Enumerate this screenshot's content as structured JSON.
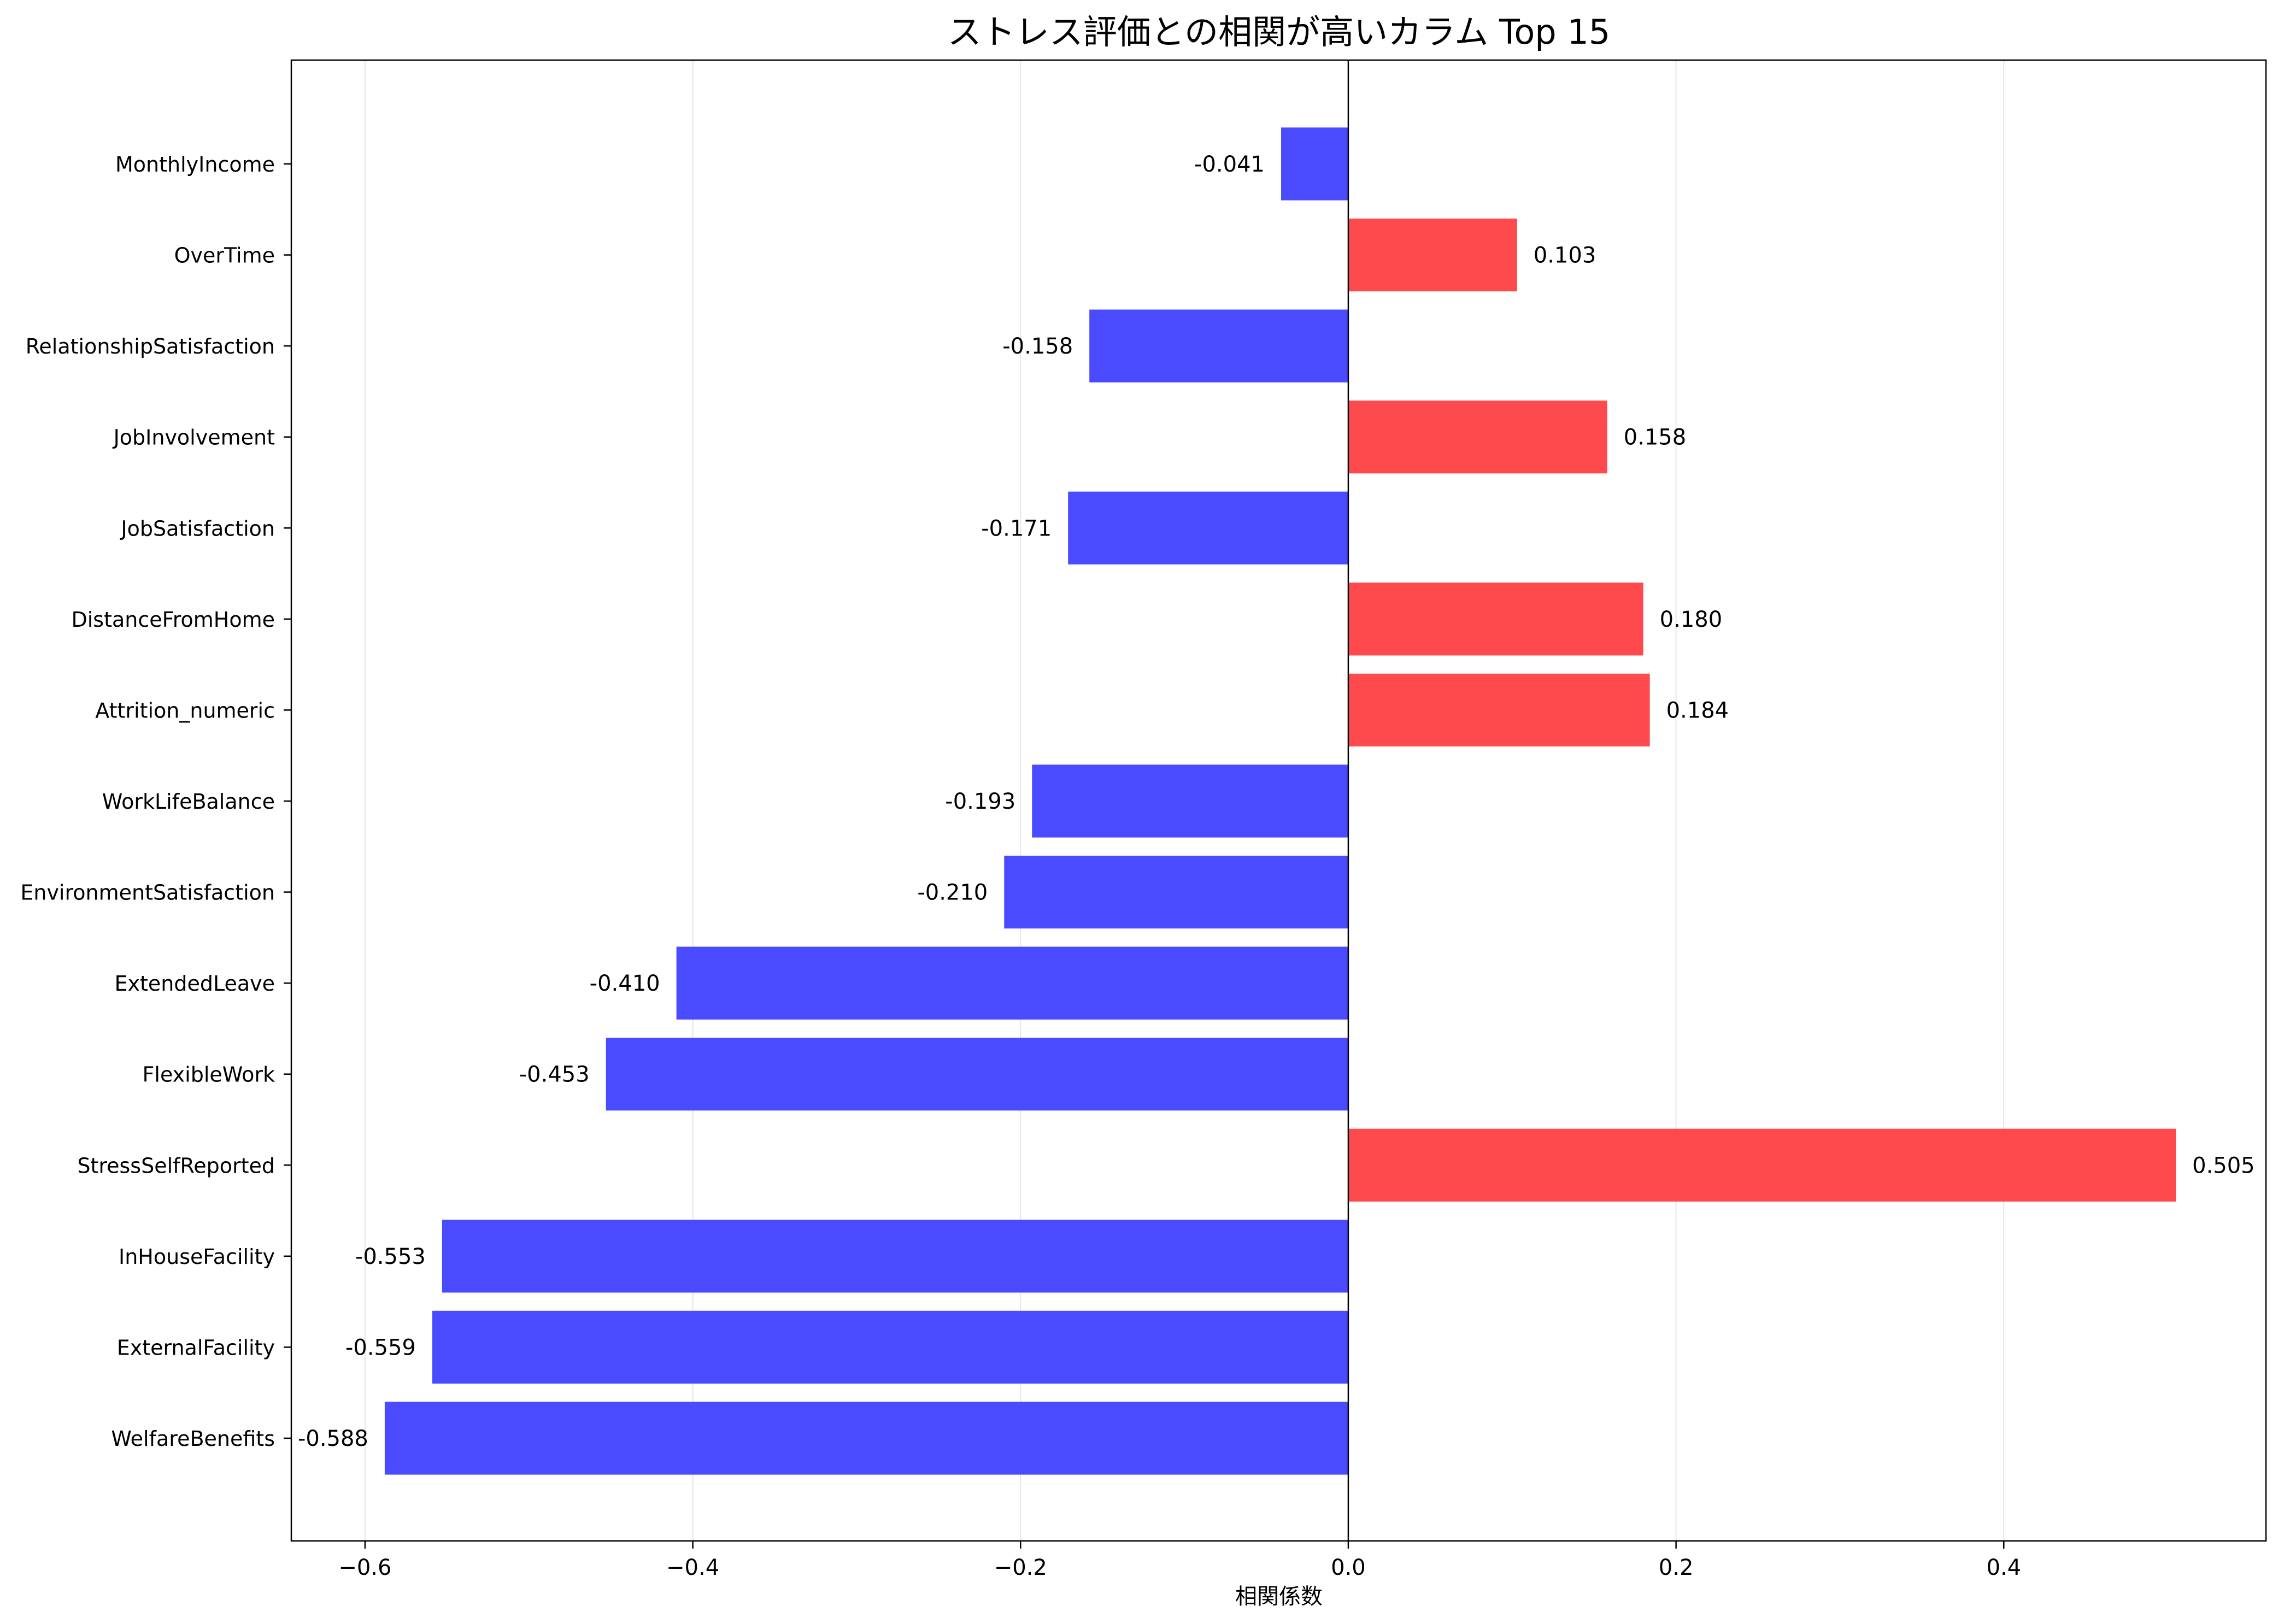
{
  "chart_data": {
    "type": "bar",
    "orientation": "horizontal",
    "title": "ストレス評価との相関が高いカラム Top 15",
    "xlabel": "相関係数",
    "ylabel": "",
    "xlim": [
      -0.645,
      0.56
    ],
    "xticks": [
      -0.6,
      -0.4,
      -0.2,
      0.0,
      0.2,
      0.4
    ],
    "xtick_labels": [
      "−0.6",
      "−0.4",
      "−0.2",
      "0.0",
      "0.2",
      "0.4"
    ],
    "grid": "vertical",
    "positive_color": "#ff4a4d",
    "negative_color": "#4a4aff",
    "categories": [
      "MonthlyIncome",
      "OverTime",
      "RelationshipSatisfaction",
      "JobInvolvement",
      "JobSatisfaction",
      "DistanceFromHome",
      "Attrition_numeric",
      "WorkLifeBalance",
      "EnvironmentSatisfaction",
      "ExtendedLeave",
      "FlexibleWork",
      "StressSelfReported",
      "InHouseFacility",
      "ExternalFacility",
      "WelfareBenefits"
    ],
    "values": [
      -0.041,
      0.103,
      -0.158,
      0.158,
      -0.171,
      0.18,
      0.184,
      -0.193,
      -0.21,
      -0.41,
      -0.453,
      0.505,
      -0.553,
      -0.559,
      -0.588
    ],
    "value_labels": [
      "-0.041",
      "0.103",
      "-0.158",
      "0.158",
      "-0.171",
      "0.180",
      "0.184",
      "-0.193",
      "-0.210",
      "-0.410",
      "-0.453",
      "0.505",
      "-0.553",
      "-0.559",
      "-0.588"
    ]
  }
}
